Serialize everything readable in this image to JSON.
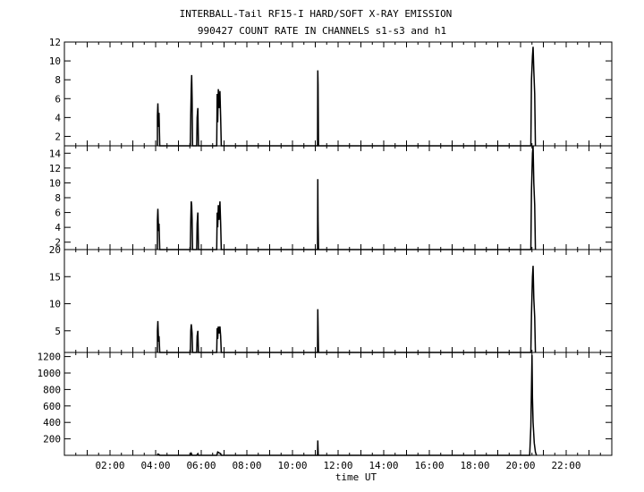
{
  "title": "INTERBALL-Tail RF15-I HARD/SOFT X-RAY EMISSION",
  "subtitle": "990427  COUNT RATE IN CHANNELS s1-s3 and h1",
  "chart_data": [
    {
      "type": "line",
      "title": "",
      "xlabel": "",
      "ylabel": "",
      "xlim": [
        0,
        24
      ],
      "ylim": [
        1,
        12
      ],
      "yticks": [
        2,
        4,
        6,
        8,
        10,
        12
      ],
      "ytick_labels": [
        "2",
        "4",
        "6",
        "8",
        "10",
        "12"
      ],
      "x_tick_labels": [],
      "series": [
        {
          "x": [
            4.08,
            4.08,
            4.1,
            4.13,
            4.15,
            4.18,
            5.52,
            5.54,
            5.56,
            5.58,
            5.6,
            5.62,
            5.8,
            5.82,
            5.85,
            5.88,
            6.68,
            6.7,
            6.72,
            6.75,
            6.78,
            6.82,
            6.85,
            6.88,
            11.1,
            11.11,
            11.12,
            11.14,
            20.45,
            20.48,
            20.52,
            20.55,
            20.58,
            20.62,
            20.65
          ],
          "y": [
            1,
            4.2,
            5.5,
            3.0,
            4.5,
            1,
            1,
            4.5,
            7.0,
            8.5,
            6.0,
            1,
            1,
            4.0,
            5.0,
            1,
            1,
            6.5,
            3.5,
            7.0,
            5.0,
            6.8,
            4.0,
            1,
            1,
            9.0,
            7.5,
            1,
            1,
            8.0,
            10.5,
            11.5,
            9.0,
            6.5,
            1
          ]
        }
      ]
    },
    {
      "type": "line",
      "title": "",
      "xlabel": "",
      "ylabel": "",
      "xlim": [
        0,
        24
      ],
      "ylim": [
        1,
        15
      ],
      "yticks": [
        2,
        4,
        6,
        8,
        10,
        12,
        14
      ],
      "ytick_labels": [
        "2",
        "4",
        "6",
        "8",
        "10",
        "12",
        "14"
      ],
      "x_tick_labels": [],
      "series": [
        {
          "x": [
            4.08,
            4.08,
            4.1,
            4.13,
            4.15,
            4.18,
            5.52,
            5.54,
            5.56,
            5.58,
            5.6,
            5.62,
            5.8,
            5.82,
            5.85,
            5.88,
            6.68,
            6.7,
            6.72,
            6.75,
            6.78,
            6.82,
            6.85,
            6.88,
            11.1,
            11.11,
            11.12,
            11.14,
            20.45,
            20.48,
            20.52,
            20.55,
            20.58,
            20.62,
            20.65
          ],
          "y": [
            1,
            5.0,
            6.5,
            3.5,
            4.5,
            1,
            1,
            5.0,
            7.5,
            7.0,
            5.0,
            1,
            1,
            4.5,
            6.0,
            1,
            1,
            6.0,
            4.0,
            7.0,
            5.0,
            7.5,
            4.5,
            1,
            1,
            10.5,
            5.0,
            1,
            1,
            9.0,
            14.0,
            15.0,
            10.0,
            7.0,
            1
          ]
        }
      ]
    },
    {
      "type": "line",
      "title": "",
      "xlabel": "",
      "ylabel": "",
      "xlim": [
        0,
        24
      ],
      "ylim": [
        1,
        20
      ],
      "yticks": [
        5,
        10,
        15,
        20
      ],
      "ytick_labels": [
        "5",
        "10",
        "15",
        "20"
      ],
      "x_tick_labels": [],
      "series": [
        {
          "x": [
            4.08,
            4.08,
            4.1,
            4.13,
            4.15,
            4.18,
            5.52,
            5.54,
            5.56,
            5.58,
            5.6,
            5.62,
            5.8,
            5.82,
            5.85,
            5.88,
            6.68,
            6.7,
            6.72,
            6.75,
            6.78,
            6.82,
            6.85,
            6.88,
            11.1,
            11.11,
            11.12,
            11.14,
            20.45,
            20.48,
            20.52,
            20.55,
            20.58,
            20.62,
            20.65
          ],
          "y": [
            1,
            5.0,
            6.8,
            3.0,
            4.0,
            1,
            1,
            5.0,
            6.2,
            5.5,
            4.5,
            1,
            1,
            4.0,
            5.0,
            1,
            1,
            5.5,
            3.5,
            5.8,
            4.5,
            5.8,
            4.0,
            1,
            1,
            9.0,
            6.0,
            1,
            1,
            8.0,
            15.0,
            17.0,
            11.0,
            7.5,
            1
          ]
        }
      ]
    },
    {
      "type": "line",
      "title": "",
      "xlabel": "time UT",
      "ylabel": "",
      "xlim": [
        0,
        24
      ],
      "ylim": [
        0,
        1250
      ],
      "yticks": [
        200,
        400,
        600,
        800,
        1000,
        1200
      ],
      "ytick_labels": [
        "200",
        "400",
        "600",
        "800",
        "1000",
        "1200"
      ],
      "xticks": [
        2,
        4,
        6,
        8,
        10,
        12,
        14,
        16,
        18,
        20,
        22
      ],
      "x_tick_labels": [
        "02:00",
        "04:00",
        "06:00",
        "08:00",
        "10:00",
        "12:00",
        "14:00",
        "16:00",
        "18:00",
        "20:00",
        "22:00"
      ],
      "series": [
        {
          "x": [
            4.08,
            4.1,
            4.15,
            4.18,
            5.52,
            5.56,
            5.6,
            5.8,
            5.85,
            5.88,
            6.68,
            6.72,
            6.78,
            6.85,
            6.88,
            11.1,
            11.11,
            11.13,
            20.4,
            20.45,
            20.5,
            20.52,
            20.55,
            20.6,
            20.65,
            20.7
          ],
          "y": [
            0,
            15,
            10,
            0,
            0,
            25,
            0,
            0,
            20,
            0,
            0,
            40,
            30,
            20,
            0,
            0,
            180,
            0,
            0,
            350,
            1220,
            700,
            400,
            150,
            40,
            0
          ]
        }
      ]
    }
  ]
}
